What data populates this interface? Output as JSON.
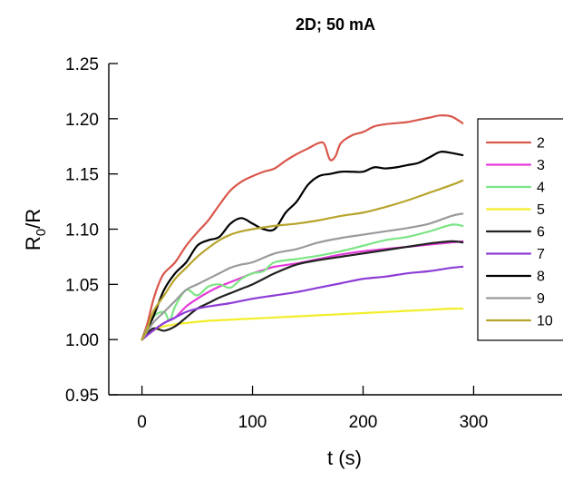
{
  "chart_data": {
    "type": "line",
    "title": "2D; 50 mA",
    "xlabel": "t (s)",
    "ylabel": "R0/R",
    "ylabel_main": "R",
    "ylabel_sub": "0",
    "ylabel_tail": "/R",
    "xlim": [
      -30,
      380
    ],
    "ylim": [
      0.95,
      1.25
    ],
    "xticks": [
      0,
      100,
      200,
      300
    ],
    "xtick_labels": [
      "0",
      "100",
      "200",
      "300"
    ],
    "yticks": [
      0.95,
      1.0,
      1.05,
      1.1,
      1.15,
      1.2,
      1.25
    ],
    "ytick_labels": [
      "0.95",
      "1.00",
      "1.05",
      "1.10",
      "1.15",
      "1.20",
      "1.25"
    ],
    "grid": false,
    "legend_position": "right",
    "series": [
      {
        "name": "2",
        "color": "#d9564b",
        "points": [
          [
            0,
            1.0
          ],
          [
            5,
            1.015
          ],
          [
            10,
            1.035
          ],
          [
            15,
            1.05
          ],
          [
            20,
            1.06
          ],
          [
            30,
            1.07
          ],
          [
            40,
            1.085
          ],
          [
            50,
            1.097
          ],
          [
            60,
            1.108
          ],
          [
            70,
            1.122
          ],
          [
            80,
            1.135
          ],
          [
            90,
            1.143
          ],
          [
            100,
            1.148
          ],
          [
            110,
            1.152
          ],
          [
            120,
            1.155
          ],
          [
            130,
            1.162
          ],
          [
            140,
            1.168
          ],
          [
            150,
            1.173
          ],
          [
            160,
            1.178
          ],
          [
            165,
            1.177
          ],
          [
            170,
            1.163
          ],
          [
            175,
            1.166
          ],
          [
            180,
            1.178
          ],
          [
            190,
            1.185
          ],
          [
            200,
            1.188
          ],
          [
            210,
            1.193
          ],
          [
            220,
            1.195
          ],
          [
            230,
            1.196
          ],
          [
            240,
            1.197
          ],
          [
            250,
            1.199
          ],
          [
            260,
            1.201
          ],
          [
            270,
            1.203
          ],
          [
            280,
            1.202
          ],
          [
            290,
            1.196
          ]
        ]
      },
      {
        "name": "3",
        "color": "#e33ad9",
        "points": [
          [
            0,
            1.0
          ],
          [
            10,
            1.008
          ],
          [
            20,
            1.015
          ],
          [
            30,
            1.02
          ],
          [
            40,
            1.03
          ],
          [
            50,
            1.037
          ],
          [
            60,
            1.043
          ],
          [
            70,
            1.048
          ],
          [
            80,
            1.052
          ],
          [
            90,
            1.056
          ],
          [
            100,
            1.06
          ],
          [
            110,
            1.063
          ],
          [
            120,
            1.066
          ],
          [
            140,
            1.069
          ],
          [
            160,
            1.073
          ],
          [
            180,
            1.077
          ],
          [
            200,
            1.08
          ],
          [
            220,
            1.082
          ],
          [
            240,
            1.084
          ],
          [
            260,
            1.086
          ],
          [
            280,
            1.088
          ],
          [
            290,
            1.089
          ]
        ]
      },
      {
        "name": "4",
        "color": "#7ce585",
        "points": [
          [
            0,
            1.0
          ],
          [
            10,
            1.02
          ],
          [
            20,
            1.025
          ],
          [
            25,
            1.017
          ],
          [
            30,
            1.03
          ],
          [
            40,
            1.045
          ],
          [
            50,
            1.04
          ],
          [
            60,
            1.048
          ],
          [
            70,
            1.05
          ],
          [
            80,
            1.047
          ],
          [
            90,
            1.055
          ],
          [
            100,
            1.06
          ],
          [
            110,
            1.062
          ],
          [
            120,
            1.07
          ],
          [
            140,
            1.073
          ],
          [
            160,
            1.076
          ],
          [
            180,
            1.08
          ],
          [
            200,
            1.085
          ],
          [
            220,
            1.09
          ],
          [
            240,
            1.093
          ],
          [
            260,
            1.098
          ],
          [
            280,
            1.104
          ],
          [
            290,
            1.103
          ]
        ]
      },
      {
        "name": "5",
        "color": "#f2ee2a",
        "points": [
          [
            0,
            1.0
          ],
          [
            10,
            1.008
          ],
          [
            20,
            1.012
          ],
          [
            40,
            1.015
          ],
          [
            60,
            1.017
          ],
          [
            80,
            1.018
          ],
          [
            100,
            1.019
          ],
          [
            120,
            1.02
          ],
          [
            140,
            1.021
          ],
          [
            160,
            1.022
          ],
          [
            180,
            1.023
          ],
          [
            200,
            1.024
          ],
          [
            220,
            1.025
          ],
          [
            240,
            1.026
          ],
          [
            260,
            1.027
          ],
          [
            280,
            1.028
          ],
          [
            290,
            1.028
          ]
        ]
      },
      {
        "name": "6",
        "color": "#222222",
        "points": [
          [
            0,
            1.0
          ],
          [
            10,
            1.01
          ],
          [
            20,
            1.008
          ],
          [
            30,
            1.012
          ],
          [
            40,
            1.02
          ],
          [
            50,
            1.028
          ],
          [
            60,
            1.033
          ],
          [
            70,
            1.038
          ],
          [
            80,
            1.042
          ],
          [
            90,
            1.046
          ],
          [
            100,
            1.05
          ],
          [
            110,
            1.055
          ],
          [
            120,
            1.06
          ],
          [
            140,
            1.068
          ],
          [
            160,
            1.072
          ],
          [
            180,
            1.075
          ],
          [
            200,
            1.078
          ],
          [
            220,
            1.081
          ],
          [
            240,
            1.084
          ],
          [
            260,
            1.087
          ],
          [
            280,
            1.089
          ],
          [
            290,
            1.088
          ]
        ]
      },
      {
        "name": "7",
        "color": "#8d3dd6",
        "points": [
          [
            0,
            1.0
          ],
          [
            10,
            1.008
          ],
          [
            20,
            1.015
          ],
          [
            30,
            1.02
          ],
          [
            40,
            1.025
          ],
          [
            50,
            1.028
          ],
          [
            60,
            1.03
          ],
          [
            80,
            1.033
          ],
          [
            100,
            1.037
          ],
          [
            120,
            1.04
          ],
          [
            140,
            1.043
          ],
          [
            160,
            1.047
          ],
          [
            180,
            1.051
          ],
          [
            200,
            1.055
          ],
          [
            220,
            1.057
          ],
          [
            240,
            1.06
          ],
          [
            260,
            1.062
          ],
          [
            280,
            1.065
          ],
          [
            290,
            1.066
          ]
        ]
      },
      {
        "name": "8",
        "color": "#000000",
        "points": [
          [
            0,
            1.0
          ],
          [
            10,
            1.02
          ],
          [
            20,
            1.045
          ],
          [
            30,
            1.06
          ],
          [
            40,
            1.07
          ],
          [
            50,
            1.085
          ],
          [
            60,
            1.09
          ],
          [
            70,
            1.093
          ],
          [
            80,
            1.105
          ],
          [
            90,
            1.11
          ],
          [
            100,
            1.105
          ],
          [
            110,
            1.1
          ],
          [
            120,
            1.1
          ],
          [
            130,
            1.115
          ],
          [
            140,
            1.125
          ],
          [
            150,
            1.14
          ],
          [
            160,
            1.148
          ],
          [
            170,
            1.15
          ],
          [
            180,
            1.152
          ],
          [
            190,
            1.152
          ],
          [
            200,
            1.152
          ],
          [
            210,
            1.156
          ],
          [
            220,
            1.155
          ],
          [
            230,
            1.156
          ],
          [
            240,
            1.158
          ],
          [
            250,
            1.16
          ],
          [
            260,
            1.165
          ],
          [
            270,
            1.17
          ],
          [
            280,
            1.169
          ],
          [
            290,
            1.167
          ]
        ]
      },
      {
        "name": "9",
        "color": "#9a9a9a",
        "points": [
          [
            0,
            1.0
          ],
          [
            10,
            1.015
          ],
          [
            20,
            1.025
          ],
          [
            30,
            1.035
          ],
          [
            40,
            1.045
          ],
          [
            50,
            1.05
          ],
          [
            60,
            1.055
          ],
          [
            70,
            1.06
          ],
          [
            80,
            1.065
          ],
          [
            90,
            1.068
          ],
          [
            100,
            1.07
          ],
          [
            120,
            1.078
          ],
          [
            140,
            1.082
          ],
          [
            160,
            1.088
          ],
          [
            180,
            1.092
          ],
          [
            200,
            1.095
          ],
          [
            220,
            1.098
          ],
          [
            240,
            1.101
          ],
          [
            260,
            1.105
          ],
          [
            280,
            1.112
          ],
          [
            290,
            1.114
          ]
        ]
      },
      {
        "name": "10",
        "color": "#b7a42c",
        "points": [
          [
            0,
            1.0
          ],
          [
            5,
            1.01
          ],
          [
            10,
            1.025
          ],
          [
            20,
            1.04
          ],
          [
            30,
            1.055
          ],
          [
            40,
            1.065
          ],
          [
            50,
            1.075
          ],
          [
            60,
            1.083
          ],
          [
            70,
            1.09
          ],
          [
            80,
            1.095
          ],
          [
            90,
            1.098
          ],
          [
            100,
            1.1
          ],
          [
            120,
            1.103
          ],
          [
            140,
            1.105
          ],
          [
            160,
            1.108
          ],
          [
            180,
            1.112
          ],
          [
            200,
            1.115
          ],
          [
            220,
            1.12
          ],
          [
            240,
            1.126
          ],
          [
            260,
            1.133
          ],
          [
            280,
            1.14
          ],
          [
            290,
            1.144
          ]
        ]
      }
    ]
  }
}
